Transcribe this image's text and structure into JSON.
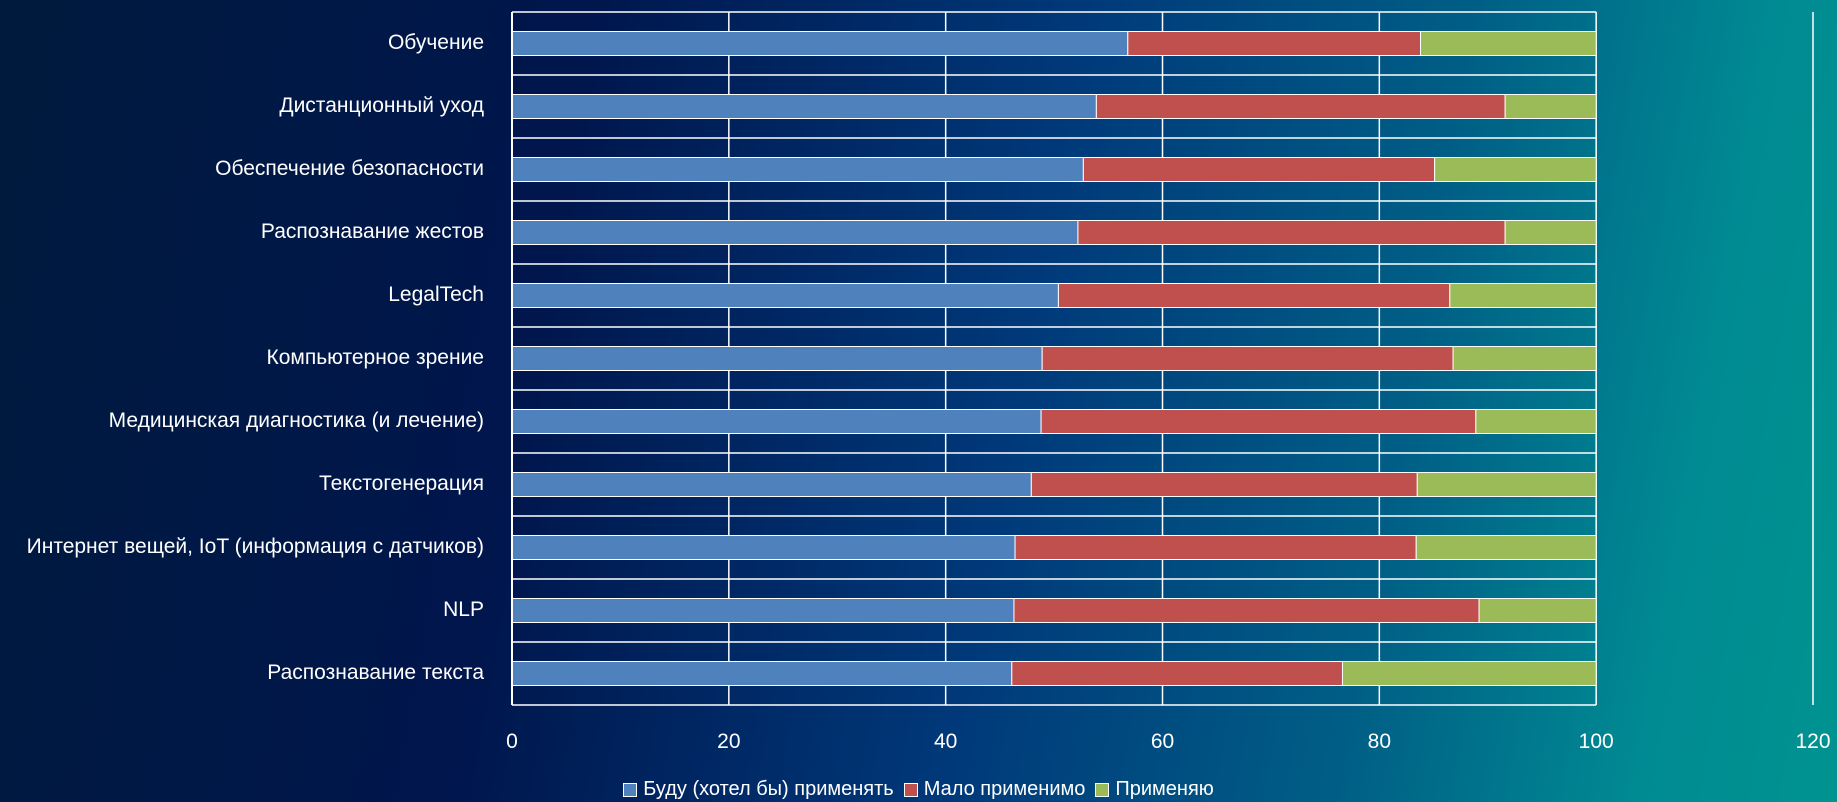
{
  "chart_data": {
    "type": "bar",
    "orientation": "horizontal",
    "stacked": true,
    "categories": [
      "Обучение",
      "Дистанционный уход",
      "Обеспечение безопасности",
      "Распознавание жестов",
      "LegalTech",
      "Компьютерное зрение",
      "Медицинская диагностика (и лечение)",
      "Текстогенерация",
      "Интернет вещей, IoT (информация с датчиков)",
      "NLP",
      "Распознавание текста"
    ],
    "series": [
      {
        "name": "Буду (хотел бы) применять",
        "color": "#4f81bd",
        "values": [
          56.8,
          53.9,
          52.7,
          52.2,
          50.4,
          48.9,
          48.8,
          47.9,
          46.4,
          46.3,
          46.1
        ]
      },
      {
        "name": "Мало применимо",
        "color": "#c0504d",
        "values": [
          27.0,
          37.7,
          32.4,
          39.4,
          36.1,
          37.9,
          40.1,
          35.6,
          37.0,
          42.9,
          30.5
        ]
      },
      {
        "name": "Применяю",
        "color": "#9bbb59",
        "values": [
          16.2,
          8.4,
          14.9,
          8.4,
          13.5,
          13.2,
          11.1,
          16.5,
          16.6,
          10.8,
          23.4
        ]
      }
    ],
    "x_ticks": [
      "0",
      "20",
      "40",
      "60",
      "80",
      "100",
      "120"
    ],
    "xlim": [
      0,
      120
    ],
    "grid": true,
    "legend_position": "bottom"
  }
}
